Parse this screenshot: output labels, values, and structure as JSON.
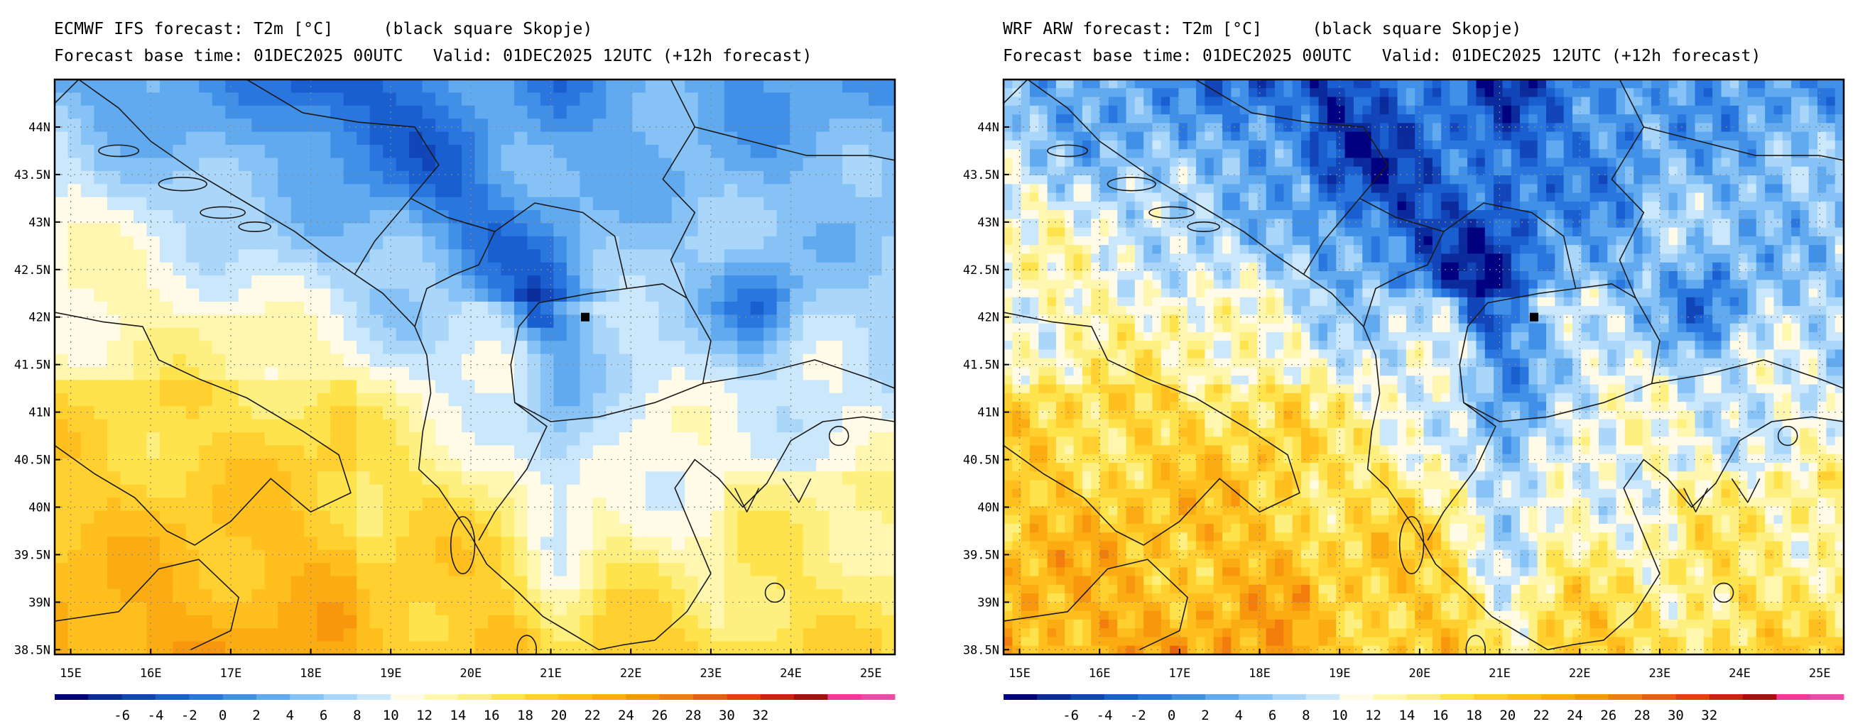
{
  "panels": [
    {
      "id": "left",
      "title_line1": "ECMWF IFS forecast: T2m [°C]     (black square Skopje)",
      "title_line2": "Forecast base time: 01DEC2025 00UTC   Valid: 01DEC2025 12UTC (+12h forecast)",
      "model": "ECMWF IFS"
    },
    {
      "id": "right",
      "title_line1": "WRF ARW forecast: T2m [°C]     (black square Skopje)",
      "title_line2": "Forecast base time: 01DEC2025 00UTC   Valid: 01DEC2025 12UTC (+12h forecast)",
      "model": "WRF ARW"
    }
  ],
  "map": {
    "lon_range": [
      14.8,
      25.3
    ],
    "lat_range": [
      38.45,
      44.5
    ],
    "lon_ticks": [
      "15E",
      "16E",
      "17E",
      "18E",
      "19E",
      "20E",
      "21E",
      "22E",
      "23E",
      "24E",
      "25E"
    ],
    "lon_values": [
      15,
      16,
      17,
      18,
      19,
      20,
      21,
      22,
      23,
      24,
      25
    ],
    "lat_ticks": [
      "38.5N",
      "39N",
      "39.5N",
      "40N",
      "40.5N",
      "41N",
      "41.5N",
      "42N",
      "42.5N",
      "43N",
      "43.5N",
      "44N"
    ],
    "lat_values": [
      38.5,
      39,
      39.5,
      40,
      40.5,
      41,
      41.5,
      42,
      42.5,
      43,
      43.5,
      44
    ],
    "marker": {
      "name": "Skopje",
      "lon": 21.43,
      "lat": 42.0
    }
  },
  "colorbar": {
    "labels": [
      "-6",
      "-4",
      "-2",
      "0",
      "2",
      "4",
      "6",
      "8",
      "10",
      "12",
      "14",
      "16",
      "18",
      "20",
      "22",
      "24",
      "26",
      "28",
      "30",
      "32"
    ],
    "colors": [
      "#000080",
      "#0b2a9c",
      "#1245b8",
      "#1a5fd0",
      "#2a76df",
      "#4190e8",
      "#62aaf0",
      "#86c2f5",
      "#aad6fa",
      "#cbe7fc",
      "#fffbe6",
      "#fff6b0",
      "#fdf080",
      "#ffe34d",
      "#ffd030",
      "#ffc01f",
      "#fbac13",
      "#f8960d",
      "#f37d0c",
      "#ea5f0b",
      "#e04310",
      "#c62611",
      "#a81010",
      "#ee3a96",
      "#f04aa8"
    ]
  }
}
